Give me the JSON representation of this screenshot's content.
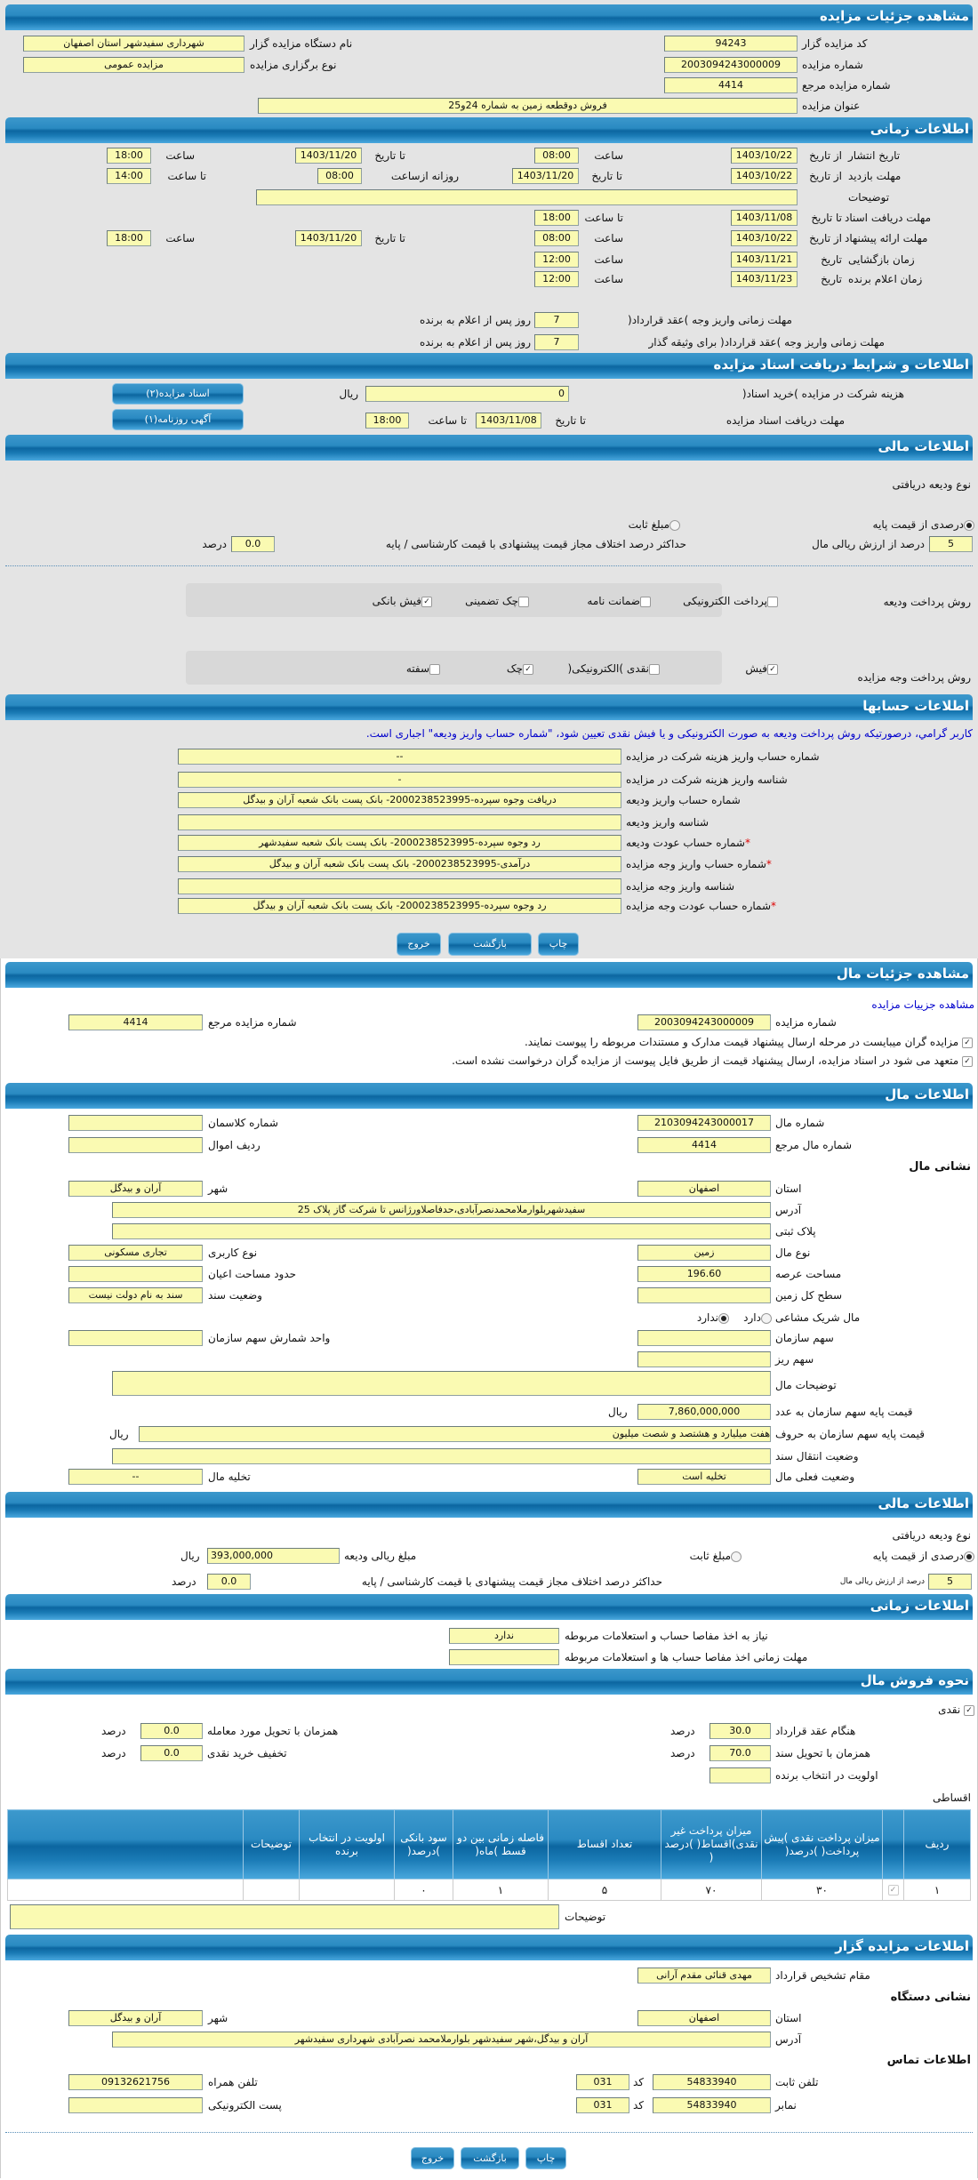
{
  "s1": {
    "title": "مشاهده جزئیات مزایده",
    "code_l": "کد مزایده گزار",
    "code": "94243",
    "org_l": "نام دستگاه مزایده گزار",
    "org": "شهرداری سفیدشهر استان اصفهان",
    "num_l": "شماره مزایده",
    "num": "2003094243000009",
    "type_l": "نوع برگزاری مزایده",
    "type": "مزایده عمومی",
    "ref_l": "شماره مزایده مرجع",
    "ref": "4414",
    "title_l": "عنوان مزایده",
    "auction_title": "فروش دوقطعه زمین به شماره 24و25"
  },
  "s2": {
    "title": "اطلاعات زمانی",
    "publish": {
      "label": "تاریخ انتشار",
      "from_l": "از تاریخ",
      "from": "1403/10/22",
      "time_l": "ساعت",
      "time": "08:00",
      "to_l": "تا تاریخ",
      "to": "1403/11/20",
      "time2_l": "ساعت",
      "time2": "18:00"
    },
    "visit": {
      "label": "مهلت بازدید",
      "from_l": "از تاریخ",
      "from": "1403/10/22",
      "to_l": "تا تاریخ",
      "to": "1403/11/20",
      "daily_l": "روزانه ازساعت",
      "daily": "08:00",
      "until_l": "تا ساعت",
      "until": "14:00"
    },
    "notes_l": "توضیحات",
    "docs": {
      "label": "مهلت دریافت اسناد",
      "to_l": "تا تاریخ",
      "to": "1403/11/08",
      "time_l": "تا ساعت",
      "time": "18:00"
    },
    "offer": {
      "label": "مهلت ارائه پیشنهاد",
      "from_l": "از تاریخ",
      "from": "1403/10/22",
      "time_l": "ساعت",
      "time": "08:00",
      "to_l": "تا تاریخ",
      "to": "1403/11/20",
      "time2_l": "ساعت",
      "time2": "18:00"
    },
    "opening": {
      "label": "زمان بازگشایی",
      "date_l": "تاریخ",
      "date": "1403/11/21",
      "time_l": "ساعت",
      "time": "12:00"
    },
    "winner": {
      "label": "زمان اعلام برنده",
      "date_l": "تاریخ",
      "date": "1403/11/23",
      "time_l": "ساعت",
      "time": "12:00"
    },
    "pay1": {
      "label": "مهلت زمانی واریز وجه )عقد قرارداد(",
      "value": "7",
      "suffix": "روز پس از اعلام به برنده"
    },
    "pay2": {
      "label": "مهلت زمانی واریز وجه )عقد قرارداد( برای وثیقه گذار",
      "value": "7",
      "suffix": "روز پس از اعلام به برنده"
    }
  },
  "s3": {
    "title": "اطلاعات و شرایط دریافت اسناد مزایده",
    "fee_l": "هزینه شرکت در مزایده )خرید اسناد(",
    "fee": "0",
    "currency": "ریال",
    "deadline_l": "مهلت دریافت اسناد مزایده",
    "to_l": "تا تاریخ",
    "to": "1403/11/08",
    "time_l": "تا ساعت",
    "time": "18:00",
    "btn_docs": "اسناد مزایده(۲)",
    "btn_ad": "آگهی روزنامه(۱)"
  },
  "s4": {
    "title": "اطلاعات مالی",
    "deposit_type_l": "نوع ودیعه دریافتی",
    "opt_percent": "درصدی از قیمت پایه",
    "opt_fixed": "مبلغ ثابت",
    "percent_selected": true,
    "fixed_selected": false,
    "percent": "5",
    "percent_l": "درصد از ارزش ریالی مال",
    "maxdiff_l": "حداکثر درصد اختلاف مجاز قیمت پیشنهادی با قیمت کارشناسی / پایه",
    "maxdiff": "0.0",
    "unit": "درصد",
    "dep_method_l": "روش پرداخت ودیعه",
    "dep_methods": [
      {
        "label": "پرداخت الکترونیکی",
        "checked": false
      },
      {
        "label": "ضمانت نامه",
        "checked": false
      },
      {
        "label": "چک تضمینی",
        "checked": false
      },
      {
        "label": "فیش بانکی",
        "checked": true
      }
    ],
    "pay_method_l": "روش پرداخت وجه مزایده",
    "pay_methods": [
      {
        "label": "فیش",
        "checked": true
      },
      {
        "label": "نقدی )الکترونیکی(",
        "checked": false
      },
      {
        "label": "چک",
        "checked": true
      },
      {
        "label": "سفته",
        "checked": false
      }
    ]
  },
  "s5": {
    "title": "اطلاعات حسابها",
    "note": "کاربر گرامي، درصورتیکه روش پرداخت ودیعه به صورت الکترونیکی و یا فیش نقدی تعیین شود، \"شماره حساب واریز ودیعه\" اجباری است.",
    "rows": [
      {
        "label": "شماره حساب واریز هزینه شرکت در مزایده",
        "value": "--"
      },
      {
        "label": "شناسه واریز هزینه شرکت در مزایده",
        "value": "-"
      },
      {
        "label": "شماره حساب واریز ودیعه",
        "value": "دریافت وجوه سپرده-2000238523995- بانک پست بانک شعبه آران و بیدگل"
      },
      {
        "label": "شناسه واریز ودیعه",
        "value": ""
      },
      {
        "label": "شماره حساب عودت ودیعه",
        "value": "رد وجوه سپرده-2000238523995- بانک پست بانک شعبه سفیدشهر",
        "required": "*"
      },
      {
        "label": "شماره حساب واریز وجه مزایده",
        "value": "درآمدی-2000238523995- بانک پست بانک شعبه آران و بیدگل",
        "required": "*"
      },
      {
        "label": "شناسه واریز وجه مزایده",
        "value": ""
      },
      {
        "label": "شماره حساب عودت وجه مزایده",
        "value": "رد وجوه سپرده-2000238523995- بانک پست بانک شعبه آران و بیدگل",
        "required": "*"
      }
    ],
    "btn_print": "چاپ",
    "btn_back": "بازگشت",
    "btn_exit": "خروج"
  },
  "s6": {
    "title": "مشاهده جزئیات مال",
    "link": "مشاهده جزییات مزایده",
    "num_l": "شماره مزایده",
    "num": "2003094243000009",
    "ref_l": "شماره مزایده مرجع",
    "ref": "4414",
    "check1": "مزایده گران میبایست در مرحله ارسال پیشنهاد قیمت مدارک و مستندات مربوطه را پیوست نمایند.",
    "check1_on": true,
    "check2": "متعهد می شود در اسناد مزایده، ارسال پیشنهاد قیمت از طریق فایل پیوست از مزایده گران درخواست نشده است.",
    "check2_on": true
  },
  "s7": {
    "title": "اطلاعات مال",
    "item_no_l": "شماره مال",
    "item_no": "2103094243000017",
    "class_l": "شماره کلاسمان",
    "class_no": "",
    "item_ref_l": "شماره مال مرجع",
    "item_ref": "4414",
    "row_l": "ردیف اموال",
    "row_no": "",
    "address_h": "نشانی مال",
    "province_l": "استان",
    "province": "اصفهان",
    "city_l": "شهر",
    "city": "آران و بیدگل",
    "addr_l": "آدرس",
    "addr": "سفیدشهربلوارملامحمدنصرآبادی،حدفاصلاورژانس تا شرکت گاز پلاک 25",
    "plate_l": "پلاک ثبتی",
    "plate": "",
    "kind_l": "نوع مال",
    "kind": "زمین",
    "usage_l": "نوع کاربری",
    "usage": "تجاری مسکونی",
    "area_l": "مساحت عرصه",
    "area": "196.60",
    "building_l": "حدود مساحت اعیان",
    "building": "",
    "total_l": "سطح کل زمین",
    "total": "",
    "deed_l": "وضعیت سند",
    "deed": "سند به نام دولت نیست",
    "shared_l": "مال شریک مشاعی",
    "yes": "دارد",
    "no": "ندارد",
    "shared_yes": false,
    "shared_no": true,
    "share_l": "سهم سازمان",
    "share": "",
    "share_unit_l": "واحد شمارش سهم سازمان",
    "share_unit": "",
    "small_l": "سهم ریز",
    "small": "",
    "desc_l": "توضیحات مال",
    "desc": "",
    "price_num_l": "قیمت پایه سهم سازمان به عدد",
    "price_num": "7,860,000,000",
    "price_txt_l": "قیمت پایه سهم سازمان به حروف",
    "price_txt": "هفت میلیارد و هشتصد و شصت میلیون",
    "currency": "ریال",
    "transfer_l": "وضعیت انتقال سند",
    "transfer": "",
    "status_l": "وضعیت فعلی مال",
    "status": "تخلیه است",
    "evac_l": "تخلیه مال",
    "evac": "--"
  },
  "s8": {
    "title": "اطلاعات مالی",
    "deposit_type_l": "نوع ودیعه دریافتی",
    "opt_percent": "درصدی از قیمت پایه",
    "opt_fixed": "مبلغ ثابت",
    "percent_selected": true,
    "fixed_selected": false,
    "amount_l": "مبلغ ریالی ودیعه",
    "amount": "393,000,000",
    "currency": "ریال",
    "percent": "5",
    "percent_l": "درصد از ارزش ریالی مال",
    "maxdiff_l": "حداکثر درصد اختلاف مجاز قیمت پیشنهادی با قیمت کارشناسی / پایه",
    "maxdiff": "0.0",
    "unit": "درصد"
  },
  "s9": {
    "title": "اطلاعات زمانی",
    "clear_l": "نیاز به اخذ مفاصا حساب و استعلامات مربوطه",
    "clear": "ندارد",
    "clear_deadline_l": "مهلت زمانی اخذ مفاصا حساب ها و استعلامات مربوطه",
    "clear_deadline": ""
  },
  "s10": {
    "title": "نحوه فروش مال",
    "cash_l": "نقدی",
    "cash_on": true,
    "contract_l": "هنگام عقد قرارداد",
    "contract": "30.0",
    "deliver_l": "همزمان با تحویل مورد معامله",
    "deliver": "0.0",
    "deed_l": "همزمان با تحویل سند",
    "deed": "70.0",
    "discount_l": "تخفیف خرید نقدی",
    "discount": "0.0",
    "priority_l": "اولویت در انتخاب برنده",
    "priority": "",
    "unit": "درصد",
    "install_l": "اقساطی",
    "table": {
      "headers": [
        "ردیف",
        "",
        "میزان پرداخت نقدی )پیش پرداخت( )درصد(",
        "میزان پرداخت غیر نقدی)اقساط( )درصد (",
        "تعداد اقساط",
        "فاصله زمانی بین دو قسط )ماه(",
        "سود بانکی )درصد(",
        "اولویت در انتخاب برنده",
        "توضیحات",
        ""
      ],
      "rows": [
        {
          "cells": [
            "۱",
            "",
            "۳۰",
            "۷۰",
            "۵",
            "۱",
            "۰",
            "",
            "",
            ""
          ],
          "checked": true
        }
      ]
    },
    "notes_l": "توضیحات",
    "notes": ""
  },
  "s11": {
    "title": "اطلاعات مزایده گزار",
    "authority_l": "مقام تشخیص قرارداد",
    "authority": "مهدی قنائی مقدم آرانی",
    "org_addr_h": "نشانی دستگاه",
    "province_l": "استان",
    "province": "اصفهان",
    "city_l": "شهر",
    "city": "آران و بیدگل",
    "addr_l": "آدرس",
    "addr": "آران و بیدگل،شهر سفیدشهر بلوارملامحمد نصرآبادی شهرداری سفیدشهر",
    "contact_h": "اطلاعات تماس",
    "phone_l": "تلفن ثابت",
    "phone": "54833940",
    "code_l": "کد",
    "phone_code": "031",
    "mobile_l": "تلفن همراه",
    "mobile": "09132621756",
    "fax_l": "نمابر",
    "fax": "54833940",
    "fax_code": "031",
    "email_l": "پست الکترونیکی",
    "email": "",
    "btn_print": "چاپ",
    "btn_back": "بازگشت",
    "btn_exit": "خروج"
  }
}
